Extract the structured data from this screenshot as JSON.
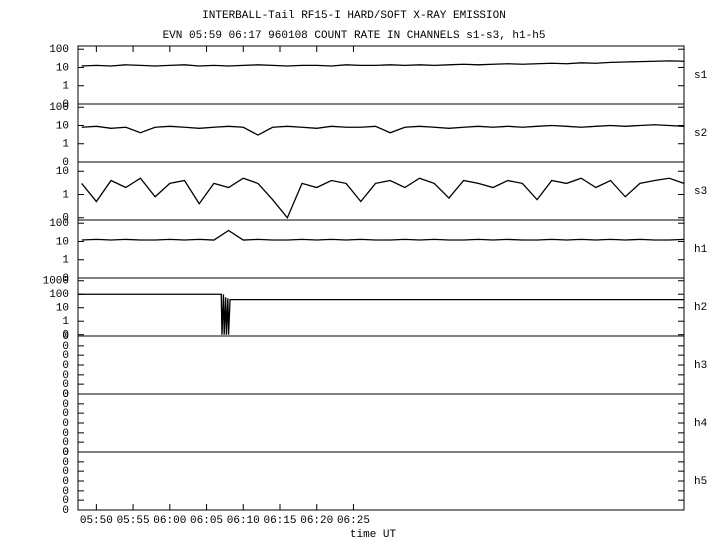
{
  "chart_data": [
    {
      "type": "line",
      "title": "INTERBALL-Tail RF15-I HARD/SOFT X-RAY EMISSION",
      "subtitle": "EVN 05:59 06:17 960108  COUNT RATE IN CHANNELS s1-s3, h1-h5",
      "label": "s1",
      "log_y": true,
      "color": "#000000",
      "xlim": [
        347.5,
        430
      ],
      "ylim": [
        0.1,
        150
      ],
      "yticks": [
        100,
        10,
        1,
        {
          "value": 0.1,
          "label": "0"
        }
      ],
      "x": [
        348,
        350,
        352,
        354,
        356,
        358,
        360,
        362,
        364,
        366,
        368,
        370,
        372,
        374,
        376,
        378,
        380,
        382,
        384,
        386,
        388,
        390,
        392,
        394,
        396,
        398,
        400,
        402,
        404,
        406,
        408,
        410,
        412,
        414,
        416,
        418,
        420,
        422,
        424,
        426,
        428,
        430
      ],
      "values": [
        12,
        13,
        12,
        14,
        13,
        12,
        13,
        14,
        12,
        13,
        12,
        13,
        14,
        13,
        12,
        13,
        13,
        12,
        14,
        13,
        13,
        14,
        13,
        14,
        13,
        14,
        15,
        14,
        15,
        16,
        15,
        16,
        17,
        16,
        18,
        17,
        19,
        20,
        21,
        22,
        23,
        22
      ]
    },
    {
      "type": "line",
      "label": "s2",
      "log_y": true,
      "color": "#000000",
      "xlim": [
        347.5,
        430
      ],
      "ylim": [
        0.1,
        150
      ],
      "yticks": [
        100,
        10,
        1,
        {
          "value": 0.1,
          "label": "0"
        }
      ],
      "x": [
        348,
        350,
        352,
        354,
        356,
        358,
        360,
        362,
        364,
        366,
        368,
        370,
        372,
        374,
        376,
        378,
        380,
        382,
        384,
        386,
        388,
        390,
        392,
        394,
        396,
        398,
        400,
        402,
        404,
        406,
        408,
        410,
        412,
        414,
        416,
        418,
        420,
        422,
        424,
        426,
        428,
        430
      ],
      "values": [
        8,
        9,
        7,
        8,
        4,
        8,
        9,
        8,
        7,
        8,
        9,
        8,
        3,
        8,
        9,
        8,
        7,
        9,
        8,
        8,
        9,
        4,
        8,
        9,
        8,
        7,
        8,
        9,
        8,
        9,
        8,
        9,
        10,
        9,
        8,
        9,
        10,
        9,
        10,
        11,
        10,
        9
      ]
    },
    {
      "type": "line",
      "label": "s3",
      "log_y": true,
      "color": "#000000",
      "xlim": [
        347.5,
        430
      ],
      "ylim": [
        0.08,
        25
      ],
      "yticks": [
        10,
        1,
        {
          "value": 0.1,
          "label": "0"
        }
      ],
      "x": [
        348,
        350,
        352,
        354,
        356,
        358,
        360,
        362,
        364,
        366,
        368,
        370,
        372,
        374,
        376,
        378,
        380,
        382,
        384,
        386,
        388,
        390,
        392,
        394,
        396,
        398,
        400,
        402,
        404,
        406,
        408,
        410,
        412,
        414,
        416,
        418,
        420,
        422,
        424,
        426,
        428,
        430
      ],
      "values": [
        3,
        0.5,
        4,
        2,
        5,
        0.8,
        3,
        4,
        0.4,
        3,
        2,
        5,
        3,
        0.6,
        0.1,
        3,
        2,
        4,
        3,
        0.5,
        3,
        4,
        2,
        5,
        3,
        0.7,
        4,
        3,
        2,
        4,
        3,
        0.6,
        4,
        3,
        5,
        2,
        4,
        0.8,
        3,
        4,
        5,
        3
      ]
    },
    {
      "type": "line",
      "label": "h1",
      "log_y": true,
      "color": "#000000",
      "xlim": [
        347.5,
        430
      ],
      "ylim": [
        0.1,
        150
      ],
      "yticks": [
        100,
        10,
        1,
        {
          "value": 0.1,
          "label": "0"
        }
      ],
      "x": [
        348,
        350,
        352,
        354,
        356,
        358,
        360,
        362,
        364,
        366,
        368,
        370,
        372,
        374,
        376,
        378,
        380,
        382,
        384,
        386,
        388,
        390,
        392,
        394,
        396,
        398,
        400,
        402,
        404,
        406,
        408,
        410,
        412,
        414,
        416,
        418,
        420,
        422,
        424,
        426,
        428,
        430
      ],
      "values": [
        12,
        13,
        12,
        13,
        12,
        12,
        13,
        12,
        13,
        12,
        40,
        12,
        13,
        12,
        12,
        13,
        12,
        13,
        12,
        13,
        12,
        12,
        13,
        12,
        13,
        12,
        12,
        13,
        12,
        13,
        12,
        12,
        13,
        12,
        13,
        12,
        13,
        12,
        13,
        12,
        12,
        13
      ]
    },
    {
      "type": "line",
      "label": "h2",
      "log_y": true,
      "color": "#000000",
      "xlim": [
        347.5,
        430
      ],
      "ylim": [
        0.08,
        1600
      ],
      "yticks": [
        1000,
        100,
        10,
        1,
        {
          "value": 0.1,
          "label": "0"
        }
      ],
      "x": [
        347.5,
        367,
        367.1,
        367.3,
        367.4,
        367.6,
        367.7,
        367.9,
        368,
        368.2,
        368.3,
        430
      ],
      "values": [
        100,
        100,
        0.1,
        100,
        0.1,
        60,
        0.1,
        50,
        0.1,
        40,
        40,
        40
      ]
    },
    {
      "type": "line",
      "label": "h3",
      "log_y": false,
      "xlim": [
        347.5,
        430
      ],
      "ylim": [
        0,
        1
      ],
      "yticks": [
        {
          "value": 1,
          "label": "0"
        },
        {
          "value": 0.83,
          "label": "0"
        },
        {
          "value": 0.67,
          "label": "0"
        },
        {
          "value": 0.5,
          "label": "0"
        },
        {
          "value": 0.33,
          "label": "0"
        },
        {
          "value": 0.17,
          "label": "0"
        },
        0
      ]
    },
    {
      "type": "line",
      "label": "h4",
      "log_y": false,
      "xlim": [
        347.5,
        430
      ],
      "ylim": [
        0,
        1
      ],
      "yticks": [
        {
          "value": 1,
          "label": "0"
        },
        {
          "value": 0.83,
          "label": "0"
        },
        {
          "value": 0.67,
          "label": "0"
        },
        {
          "value": 0.5,
          "label": "0"
        },
        {
          "value": 0.33,
          "label": "0"
        },
        {
          "value": 0.17,
          "label": "0"
        },
        0
      ]
    },
    {
      "type": "line",
      "label": "h5",
      "log_y": false,
      "xlabel": "time UT",
      "xlim": [
        347.5,
        430
      ],
      "ylim": [
        0,
        1
      ],
      "yticks": [
        {
          "value": 1,
          "label": "0"
        },
        {
          "value": 0.83,
          "label": "0"
        },
        {
          "value": 0.67,
          "label": "0"
        },
        {
          "value": 0.5,
          "label": "0"
        },
        {
          "value": 0.33,
          "label": "0"
        },
        {
          "value": 0.17,
          "label": "0"
        },
        0
      ],
      "xticks": [
        {
          "value": 350,
          "label": "05:50"
        },
        {
          "value": 355,
          "label": "05:55"
        },
        {
          "value": 360,
          "label": "06:00"
        },
        {
          "value": 365,
          "label": "06:05"
        },
        {
          "value": 370,
          "label": "06:10"
        },
        {
          "value": 375,
          "label": "06:15"
        },
        {
          "value": 380,
          "label": "06:20"
        },
        {
          "value": 385,
          "label": "06:25"
        }
      ]
    }
  ]
}
